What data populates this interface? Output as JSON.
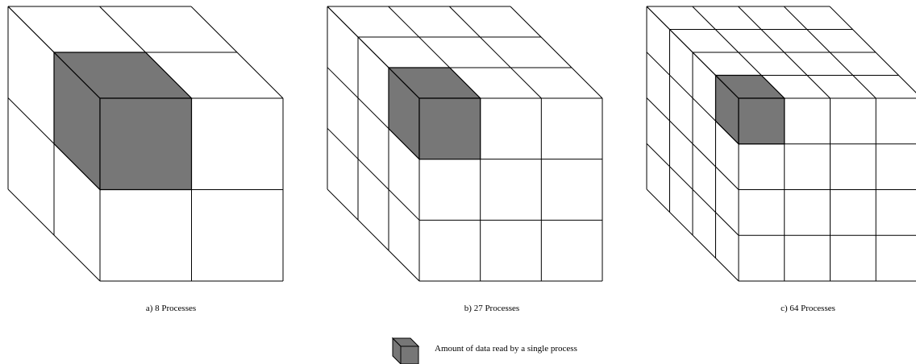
{
  "figure": {
    "panels": [
      {
        "id": "a",
        "caption": "a) 8 Processes",
        "divisions": 2
      },
      {
        "id": "b",
        "caption": "b) 27 Processes",
        "divisions": 3
      },
      {
        "id": "c",
        "caption": "c) 64 Processes",
        "divisions": 4
      }
    ],
    "legend": {
      "label": "Amount of data read by a single process"
    },
    "colors": {
      "highlight": "#777777",
      "line": "#000000",
      "background": "#ffffff"
    }
  }
}
